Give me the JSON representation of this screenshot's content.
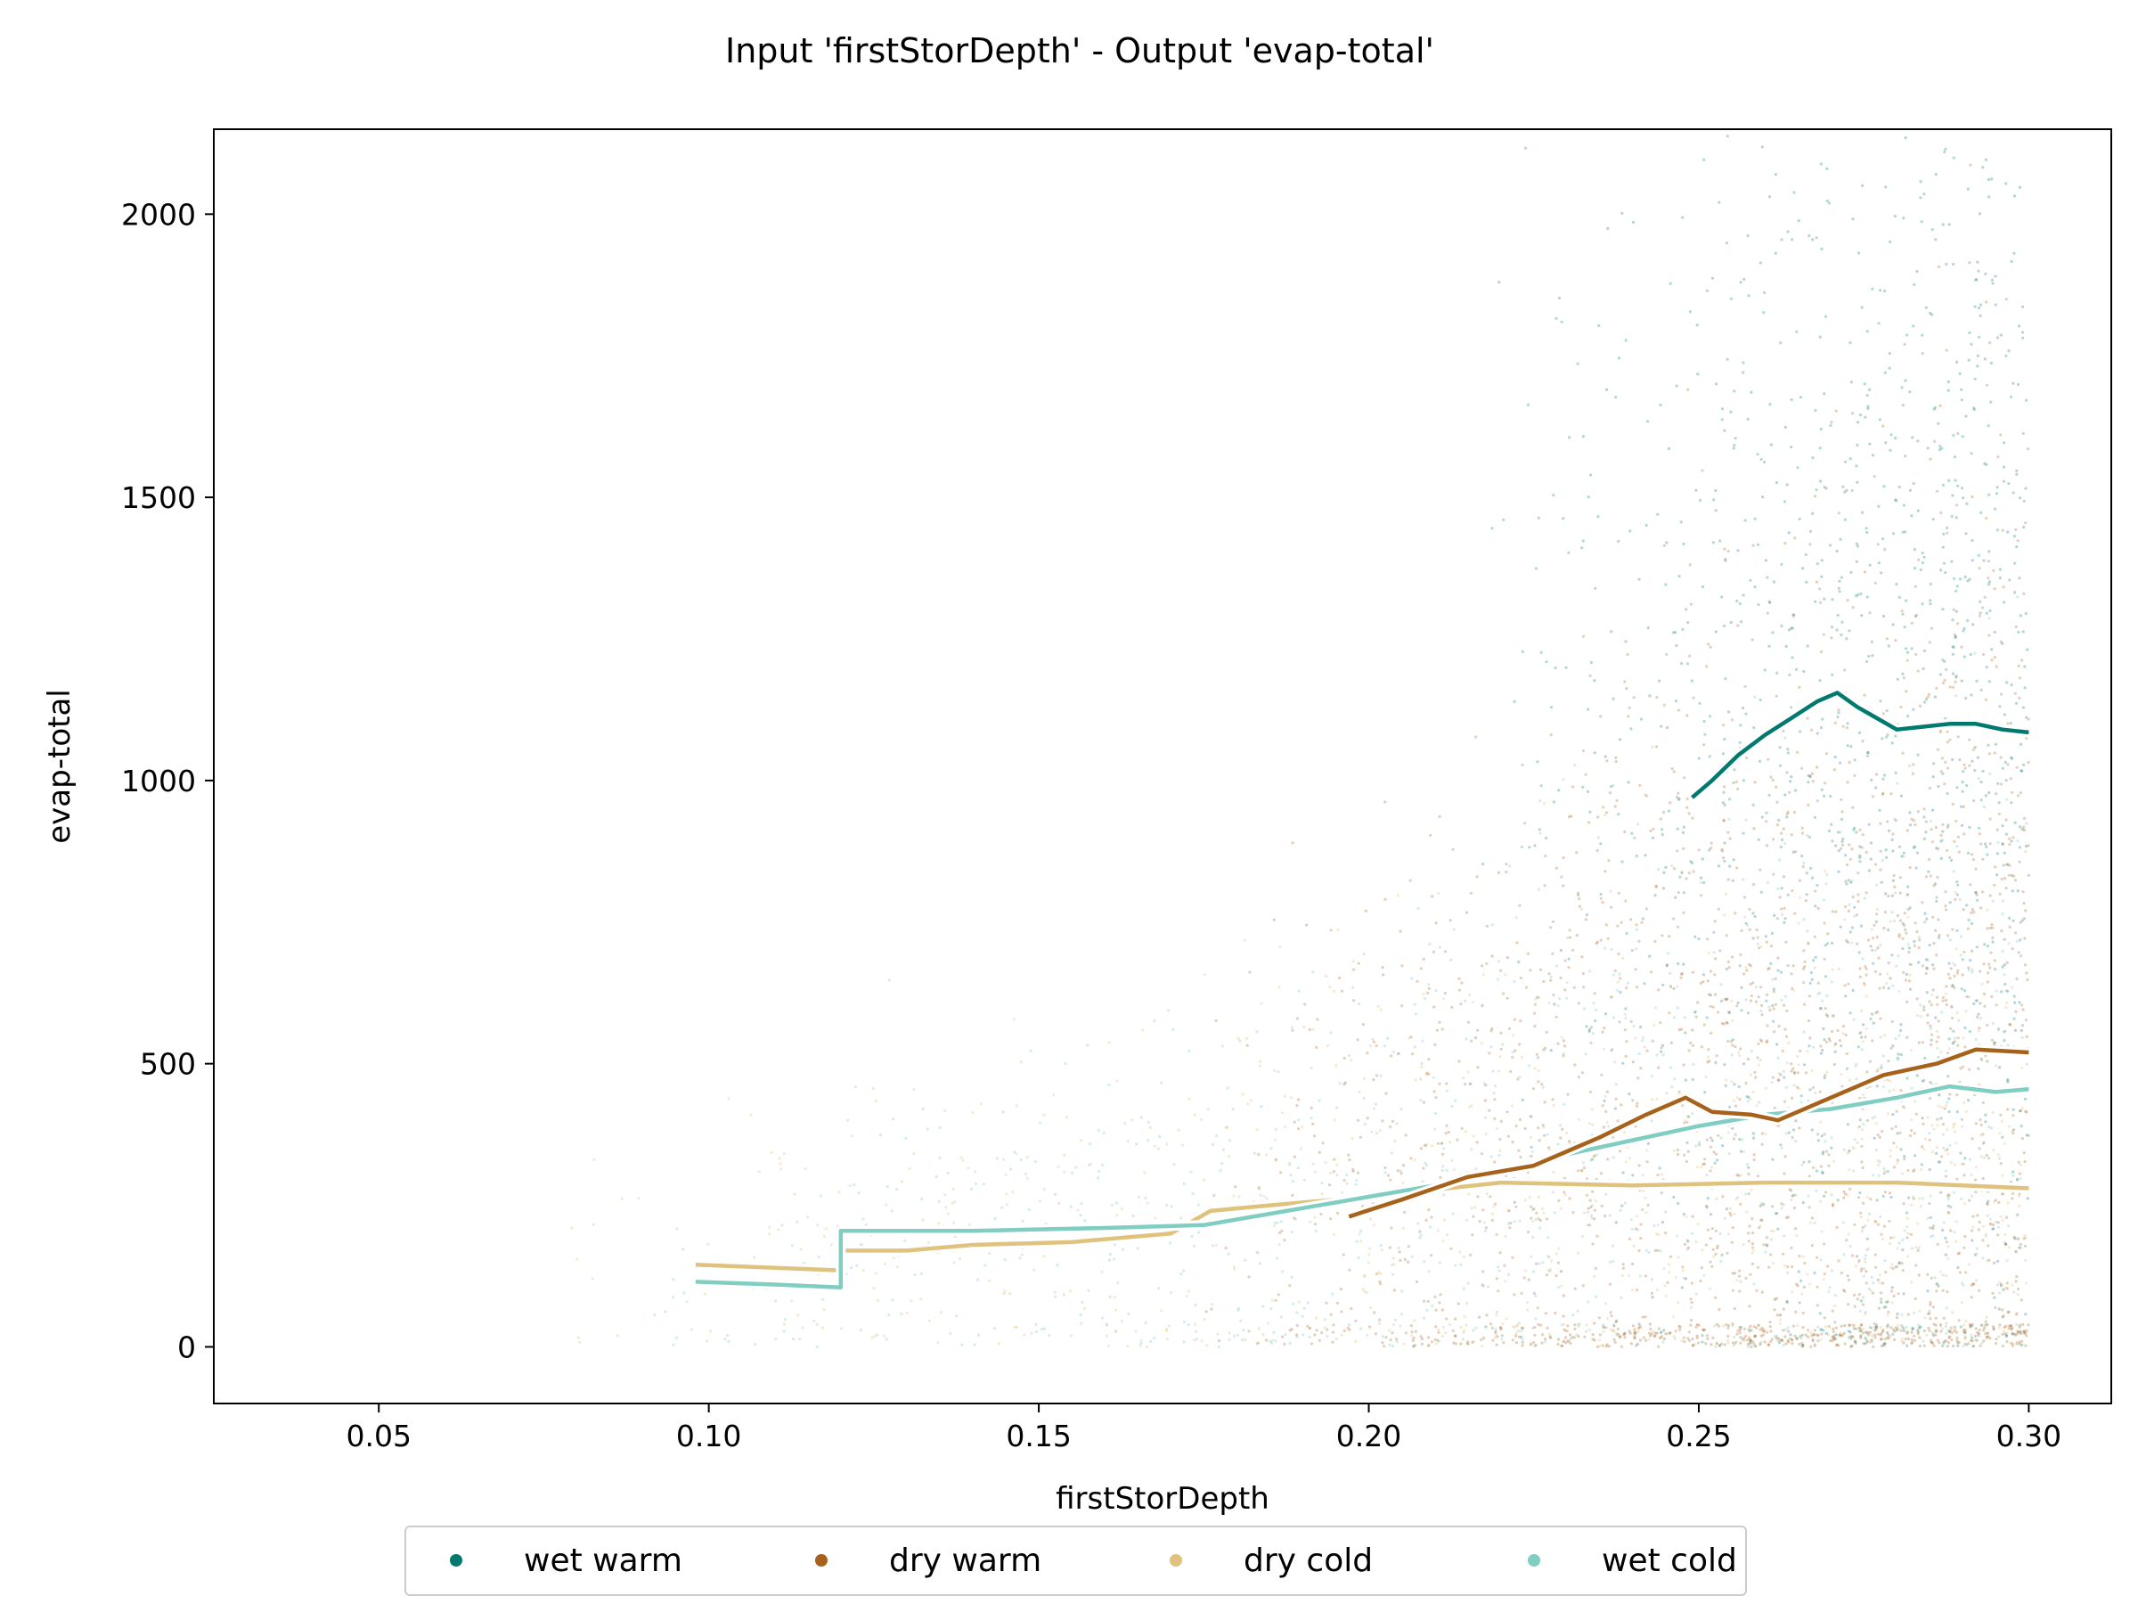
{
  "chart_data": {
    "type": "scatter",
    "title": "Input 'firstStorDepth' - Output 'evap-total'",
    "xlabel": "firstStorDepth",
    "ylabel": "evap-total",
    "xlim": [
      0.025,
      0.3125
    ],
    "ylim": [
      -100,
      2150
    ],
    "xticks": [
      0.05,
      0.1,
      0.15,
      0.2,
      0.25,
      0.3
    ],
    "xtick_labels": [
      "0.05",
      "0.10",
      "0.15",
      "0.20",
      "0.25",
      "0.30"
    ],
    "yticks": [
      0,
      500,
      1000,
      1500,
      2000
    ],
    "ytick_labels": [
      "0",
      "500",
      "1000",
      "1500",
      "2000"
    ],
    "grid": false,
    "legend_position": "bottom-center",
    "series": [
      {
        "name": "wet warm",
        "color": "#01796f",
        "trend": [
          [
            0.249,
            970
          ],
          [
            0.252,
            1000
          ],
          [
            0.256,
            1045
          ],
          [
            0.26,
            1080
          ],
          [
            0.264,
            1110
          ],
          [
            0.268,
            1140
          ],
          [
            0.271,
            1155
          ],
          [
            0.274,
            1130
          ],
          [
            0.277,
            1110
          ],
          [
            0.28,
            1090
          ],
          [
            0.284,
            1095
          ],
          [
            0.288,
            1100
          ],
          [
            0.292,
            1100
          ],
          [
            0.296,
            1090
          ],
          [
            0.3,
            1085
          ]
        ]
      },
      {
        "name": "dry warm",
        "color": "#a6611a",
        "trend": [
          [
            0.197,
            230
          ],
          [
            0.205,
            260
          ],
          [
            0.215,
            300
          ],
          [
            0.225,
            320
          ],
          [
            0.235,
            370
          ],
          [
            0.242,
            410
          ],
          [
            0.248,
            440
          ],
          [
            0.252,
            415
          ],
          [
            0.258,
            410
          ],
          [
            0.262,
            400
          ],
          [
            0.27,
            440
          ],
          [
            0.278,
            480
          ],
          [
            0.286,
            500
          ],
          [
            0.292,
            525
          ],
          [
            0.3,
            520
          ]
        ]
      },
      {
        "name": "dry cold",
        "color": "#dfc27d",
        "trend": [
          [
            0.098,
            145
          ],
          [
            0.12,
            135
          ],
          [
            0.12,
            170
          ],
          [
            0.13,
            170
          ],
          [
            0.14,
            180
          ],
          [
            0.155,
            185
          ],
          [
            0.17,
            200
          ],
          [
            0.176,
            240
          ],
          [
            0.185,
            250
          ],
          [
            0.2,
            265
          ],
          [
            0.22,
            290
          ],
          [
            0.24,
            285
          ],
          [
            0.26,
            290
          ],
          [
            0.28,
            290
          ],
          [
            0.3,
            280
          ]
        ]
      },
      {
        "name": "wet cold",
        "color": "#80cdc1",
        "trend": [
          [
            0.098,
            115
          ],
          [
            0.11,
            110
          ],
          [
            0.12,
            105
          ],
          [
            0.12,
            205
          ],
          [
            0.14,
            205
          ],
          [
            0.16,
            210
          ],
          [
            0.175,
            215
          ],
          [
            0.185,
            235
          ],
          [
            0.2,
            265
          ],
          [
            0.21,
            285
          ],
          [
            0.22,
            310
          ],
          [
            0.23,
            340
          ],
          [
            0.24,
            365
          ],
          [
            0.25,
            390
          ],
          [
            0.26,
            410
          ],
          [
            0.27,
            420
          ],
          [
            0.28,
            440
          ],
          [
            0.288,
            460
          ],
          [
            0.295,
            450
          ],
          [
            0.3,
            455
          ]
        ]
      }
    ]
  }
}
